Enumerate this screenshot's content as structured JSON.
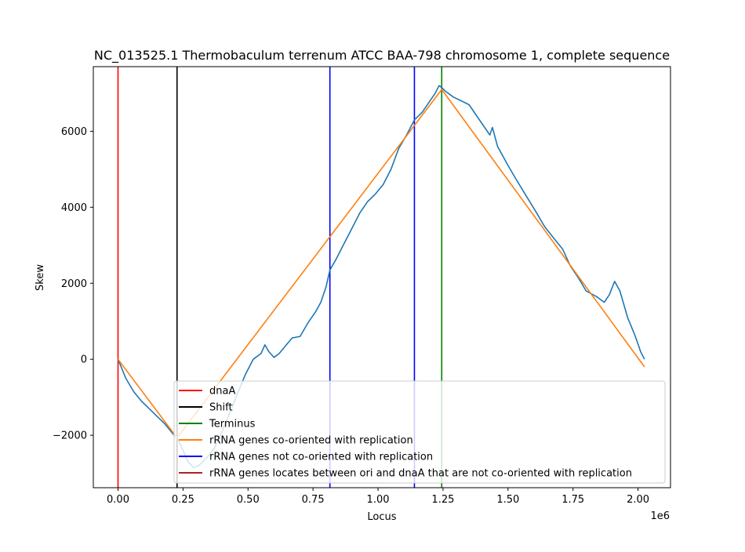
{
  "chart_data": {
    "type": "line",
    "title": "NC_013525.1 Thermobaculum terrenum ATCC BAA-798 chromosome 1, complete sequence",
    "xlabel": "Locus",
    "ylabel": "Skew",
    "x_offset_label": "1e6",
    "xlim": [
      -95000,
      2125000
    ],
    "ylim": [
      -3380,
      7700
    ],
    "x_ticks": [
      0,
      250000,
      500000,
      750000,
      1000000,
      1250000,
      1500000,
      1750000,
      2000000
    ],
    "x_tick_labels": [
      "0.00",
      "0.25",
      "0.50",
      "0.75",
      "1.00",
      "1.25",
      "1.50",
      "1.75",
      "2.00"
    ],
    "y_ticks": [
      -2000,
      0,
      2000,
      4000,
      6000
    ],
    "y_tick_labels": [
      "−2000",
      "0",
      "2000",
      "4000",
      "6000"
    ],
    "grid": false,
    "legend_position": "lower-right",
    "vertical_lines": [
      {
        "name": "dnaA",
        "x": 0,
        "color": "#ff0000"
      },
      {
        "name": "Shift",
        "x": 227000,
        "color": "#000000"
      },
      {
        "name": "Terminus",
        "x": 1245000,
        "color": "#008000"
      },
      {
        "name": "rRNA genes not co-oriented with replication",
        "x": 815000,
        "color": "#0000ff"
      },
      {
        "name": "rRNA genes not co-oriented with replication",
        "x": 1140000,
        "color": "#0000ff"
      }
    ],
    "series": [
      {
        "color": "#1f77b4",
        "points": [
          [
            0,
            0
          ],
          [
            30000,
            -500
          ],
          [
            60000,
            -850
          ],
          [
            90000,
            -1100
          ],
          [
            120000,
            -1300
          ],
          [
            150000,
            -1500
          ],
          [
            180000,
            -1700
          ],
          [
            210000,
            -1950
          ],
          [
            230000,
            -2100
          ],
          [
            250000,
            -2400
          ],
          [
            270000,
            -2700
          ],
          [
            290000,
            -2850
          ],
          [
            310000,
            -2800
          ],
          [
            340000,
            -2600
          ],
          [
            370000,
            -2350
          ],
          [
            400000,
            -1900
          ],
          [
            430000,
            -1400
          ],
          [
            460000,
            -900
          ],
          [
            490000,
            -400
          ],
          [
            520000,
            0
          ],
          [
            550000,
            150
          ],
          [
            565000,
            380
          ],
          [
            580000,
            200
          ],
          [
            600000,
            50
          ],
          [
            620000,
            150
          ],
          [
            650000,
            400
          ],
          [
            670000,
            560
          ],
          [
            700000,
            600
          ],
          [
            730000,
            950
          ],
          [
            760000,
            1250
          ],
          [
            780000,
            1500
          ],
          [
            800000,
            1900
          ],
          [
            815000,
            2350
          ],
          [
            840000,
            2650
          ],
          [
            870000,
            3050
          ],
          [
            900000,
            3450
          ],
          [
            930000,
            3850
          ],
          [
            960000,
            4150
          ],
          [
            990000,
            4350
          ],
          [
            1020000,
            4600
          ],
          [
            1050000,
            5000
          ],
          [
            1080000,
            5550
          ],
          [
            1110000,
            5900
          ],
          [
            1140000,
            6300
          ],
          [
            1170000,
            6500
          ],
          [
            1200000,
            6800
          ],
          [
            1220000,
            7000
          ],
          [
            1235000,
            7200
          ],
          [
            1245000,
            7150
          ],
          [
            1260000,
            7050
          ],
          [
            1290000,
            6900
          ],
          [
            1320000,
            6800
          ],
          [
            1350000,
            6700
          ],
          [
            1380000,
            6400
          ],
          [
            1410000,
            6100
          ],
          [
            1430000,
            5900
          ],
          [
            1440000,
            6100
          ],
          [
            1460000,
            5600
          ],
          [
            1500000,
            5100
          ],
          [
            1530000,
            4750
          ],
          [
            1570000,
            4300
          ],
          [
            1610000,
            3850
          ],
          [
            1640000,
            3500
          ],
          [
            1680000,
            3150
          ],
          [
            1710000,
            2900
          ],
          [
            1740000,
            2450
          ],
          [
            1770000,
            2150
          ],
          [
            1800000,
            1800
          ],
          [
            1840000,
            1650
          ],
          [
            1870000,
            1500
          ],
          [
            1890000,
            1700
          ],
          [
            1910000,
            2050
          ],
          [
            1930000,
            1800
          ],
          [
            1960000,
            1100
          ],
          [
            1990000,
            600
          ],
          [
            2010000,
            200
          ],
          [
            2025000,
            0
          ]
        ]
      },
      {
        "name": "rRNA genes co-oriented with replication",
        "color": "#ff7f0e",
        "points": [
          [
            0,
            0
          ],
          [
            227000,
            -2070
          ],
          [
            1245000,
            7100
          ],
          [
            2025000,
            -200
          ]
        ]
      }
    ],
    "legend": [
      {
        "label": "dnaA",
        "color": "#ff0000"
      },
      {
        "label": "Shift",
        "color": "#000000"
      },
      {
        "label": "Terminus",
        "color": "#008000"
      },
      {
        "label": "rRNA genes co-oriented with replication",
        "color": "#ff7f0e"
      },
      {
        "label": "rRNA genes not co-oriented with replication",
        "color": "#0000ff"
      },
      {
        "label": "rRNA genes locates between ori and dnaA that are not co-oriented with replication",
        "color": "#b22222"
      }
    ]
  }
}
